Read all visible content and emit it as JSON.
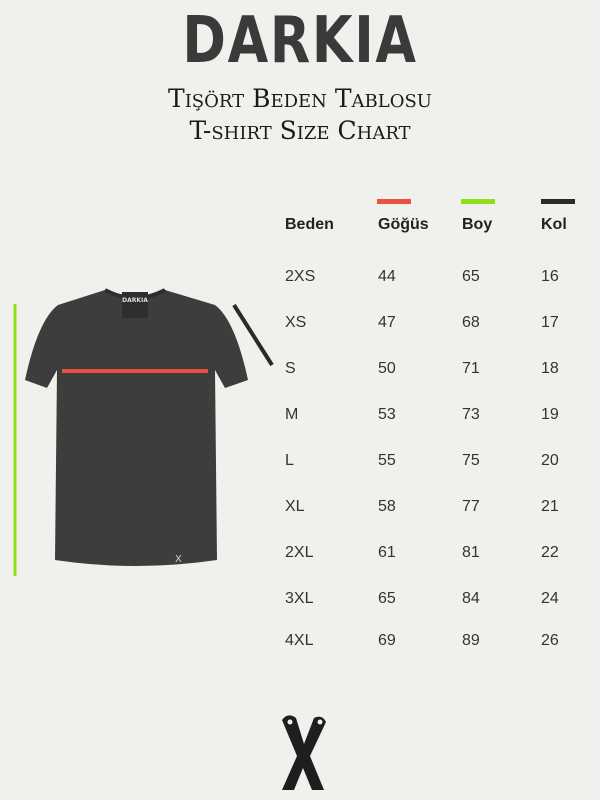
{
  "brand": "DARKIA",
  "subtitle_tr": "Tişört Beden Tablosu",
  "subtitle_en": "T-shirt Size Chart",
  "shirt_label": "DARKIA",
  "colors": {
    "gogus": "#e8523f",
    "boy": "#8fe01c",
    "kol": "#2a2a2a",
    "shirt": "#3d3d3d",
    "background": "#f0f1ec"
  },
  "table": {
    "headers": [
      "Beden",
      "Göğüs",
      "Boy",
      "Kol"
    ],
    "rows": [
      [
        "2XS",
        "44",
        "65",
        "16"
      ],
      [
        "XS",
        "47",
        "68",
        "17"
      ],
      [
        "S",
        "50",
        "71",
        "18"
      ],
      [
        "M",
        "53",
        "73",
        "19"
      ],
      [
        "L",
        "55",
        "75",
        "20"
      ],
      [
        "XL",
        "58",
        "77",
        "21"
      ],
      [
        "2XL",
        "61",
        "81",
        "22"
      ],
      [
        "3XL",
        "65",
        "84",
        "24"
      ],
      [
        "4XL",
        "69",
        "89",
        "26"
      ]
    ]
  },
  "footer_icon": "x-logo-icon"
}
